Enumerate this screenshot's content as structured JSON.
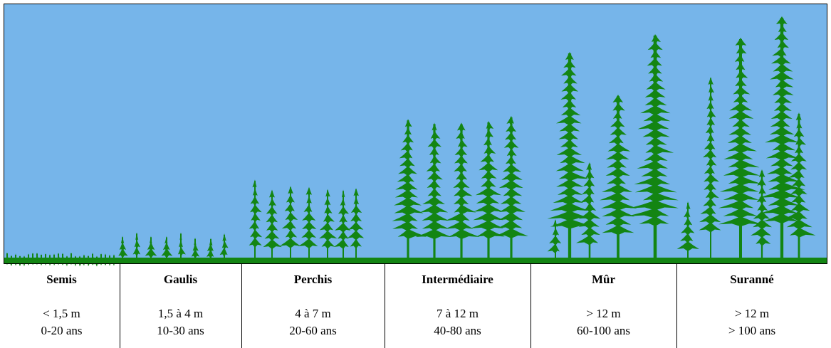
{
  "stages": [
    {
      "name": "Semis",
      "height": "< 1,5 m",
      "age": "0-20 ans"
    },
    {
      "name": "Gaulis",
      "height": "1,5 à 4 m",
      "age": "10-30 ans"
    },
    {
      "name": "Perchis",
      "height": "4 à 7 m",
      "age": "20-60 ans"
    },
    {
      "name": "Intermédiaire",
      "height": "7 à 12 m",
      "age": "40-80 ans"
    },
    {
      "name": "Mûr",
      "height": "> 12 m",
      "age": "60-100 ans"
    },
    {
      "name": "Suranné",
      "height": "> 12 m",
      "age": "> 100 ans"
    }
  ]
}
